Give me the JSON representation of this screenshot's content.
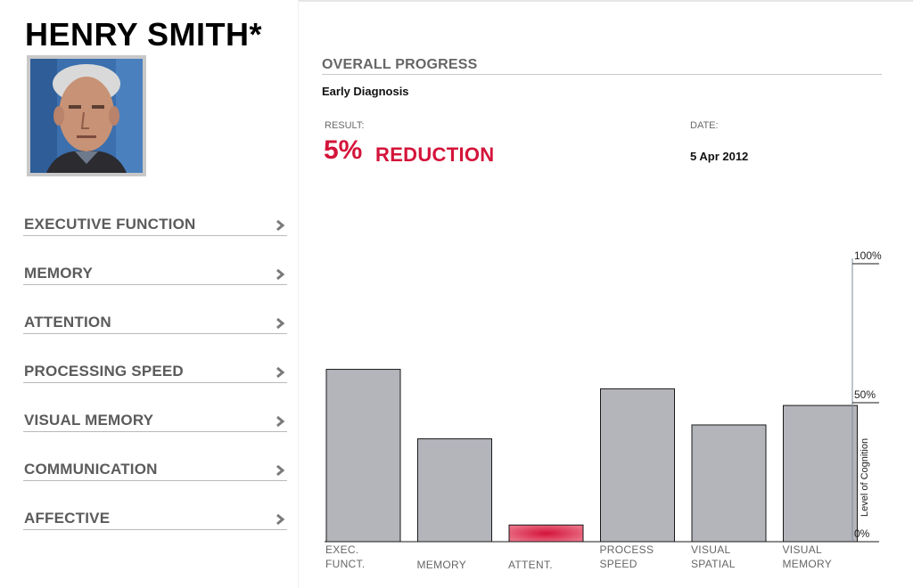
{
  "patient": {
    "name": "HENRY SMITH*"
  },
  "nav": {
    "items": [
      {
        "label": "EXECUTIVE FUNCTION"
      },
      {
        "label": "MEMORY"
      },
      {
        "label": "ATTENTION"
      },
      {
        "label": "PROCESSING SPEED"
      },
      {
        "label": "VISUAL MEMORY"
      },
      {
        "label": "COMMUNICATION"
      },
      {
        "label": "AFFECTIVE"
      }
    ]
  },
  "progress": {
    "title": "OVERALL PROGRESS",
    "subtitle": "Early Diagnosis",
    "result_label": "RESULT:",
    "result_value": "5%",
    "result_text": "REDUCTION",
    "date_label": "DATE:",
    "date_value": "5 Apr 2012"
  },
  "colors": {
    "accent": "#d4143a",
    "bar": "#b3b5bb",
    "bar_highlight": "#d4143a"
  },
  "chart_data": {
    "type": "bar",
    "categories": [
      "EXEC.\nFUNCT.",
      "MEMORY",
      "ATTENT.",
      "PROCESS\nSPEED",
      "VISUAL\nSPATIAL",
      "VISUAL\nMEMORY"
    ],
    "values": [
      62,
      37,
      6,
      55,
      42,
      49
    ],
    "highlight_index": 2,
    "ylim": [
      0,
      100
    ],
    "yticks": [
      "0%",
      "50%",
      "100%"
    ],
    "ylabel": "Level of Cognition"
  }
}
